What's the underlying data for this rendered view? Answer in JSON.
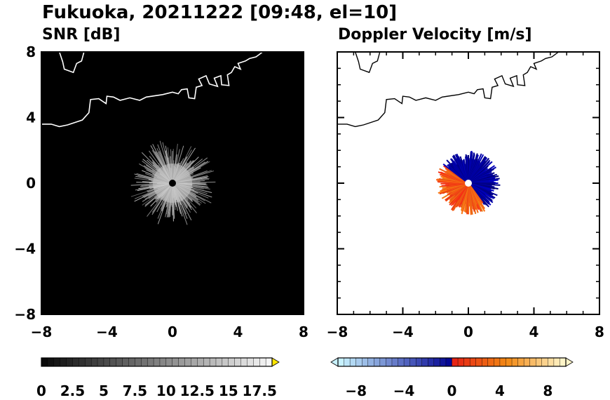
{
  "title": "Fukuoka, 20211222 [09:48, el=10]",
  "colors": {
    "snr_background": "#000000",
    "coastline_on_dark": "#ffffff",
    "coastline_on_light": "#000000",
    "velocity_negative": "#0000c8",
    "velocity_positive": "#ff3b1f"
  },
  "chart_data": [
    {
      "type": "heatmap",
      "title": "SNR [dB]",
      "xlim": [
        -8,
        8
      ],
      "ylim": [
        -8,
        8
      ],
      "xticks": [
        "−8",
        "−4",
        "0",
        "4",
        "8"
      ],
      "yticks": [
        "8",
        "4",
        "0",
        "−4",
        "−8"
      ],
      "description_echo": "radial speckle of SNR values centred on the radar site (0,0), extending to roughly 2.5 km",
      "radar_site": [
        0,
        0
      ],
      "colorbar": {
        "min": 0,
        "max": 18.5,
        "step": 0.5,
        "extend": "max",
        "labels": [
          "0",
          "2.5",
          "5",
          "7.5",
          "10",
          "12.5",
          "15",
          "17.5"
        ],
        "colormap": "grayscale"
      }
    },
    {
      "type": "heatmap",
      "title": "Doppler Velocity [m/s]",
      "xlim": [
        -8,
        8
      ],
      "ylim": [
        -8,
        8
      ],
      "xticks": [
        "−8",
        "−4",
        "0",
        "4",
        "8"
      ],
      "yticks": [
        "8",
        "4",
        "0",
        "−4",
        "−8"
      ],
      "description_echo": "velocity echo around the radar: negative (blue) to the north-east, positive (red/orange) to the south-west",
      "radar_site": [
        0,
        0
      ],
      "colorbar": {
        "min": -9.5,
        "max": 9.5,
        "step": 0.5,
        "extend": "both",
        "labels": [
          "−8",
          "−4",
          "0",
          "4",
          "8"
        ],
        "colormap": "blue-white-red"
      }
    }
  ]
}
